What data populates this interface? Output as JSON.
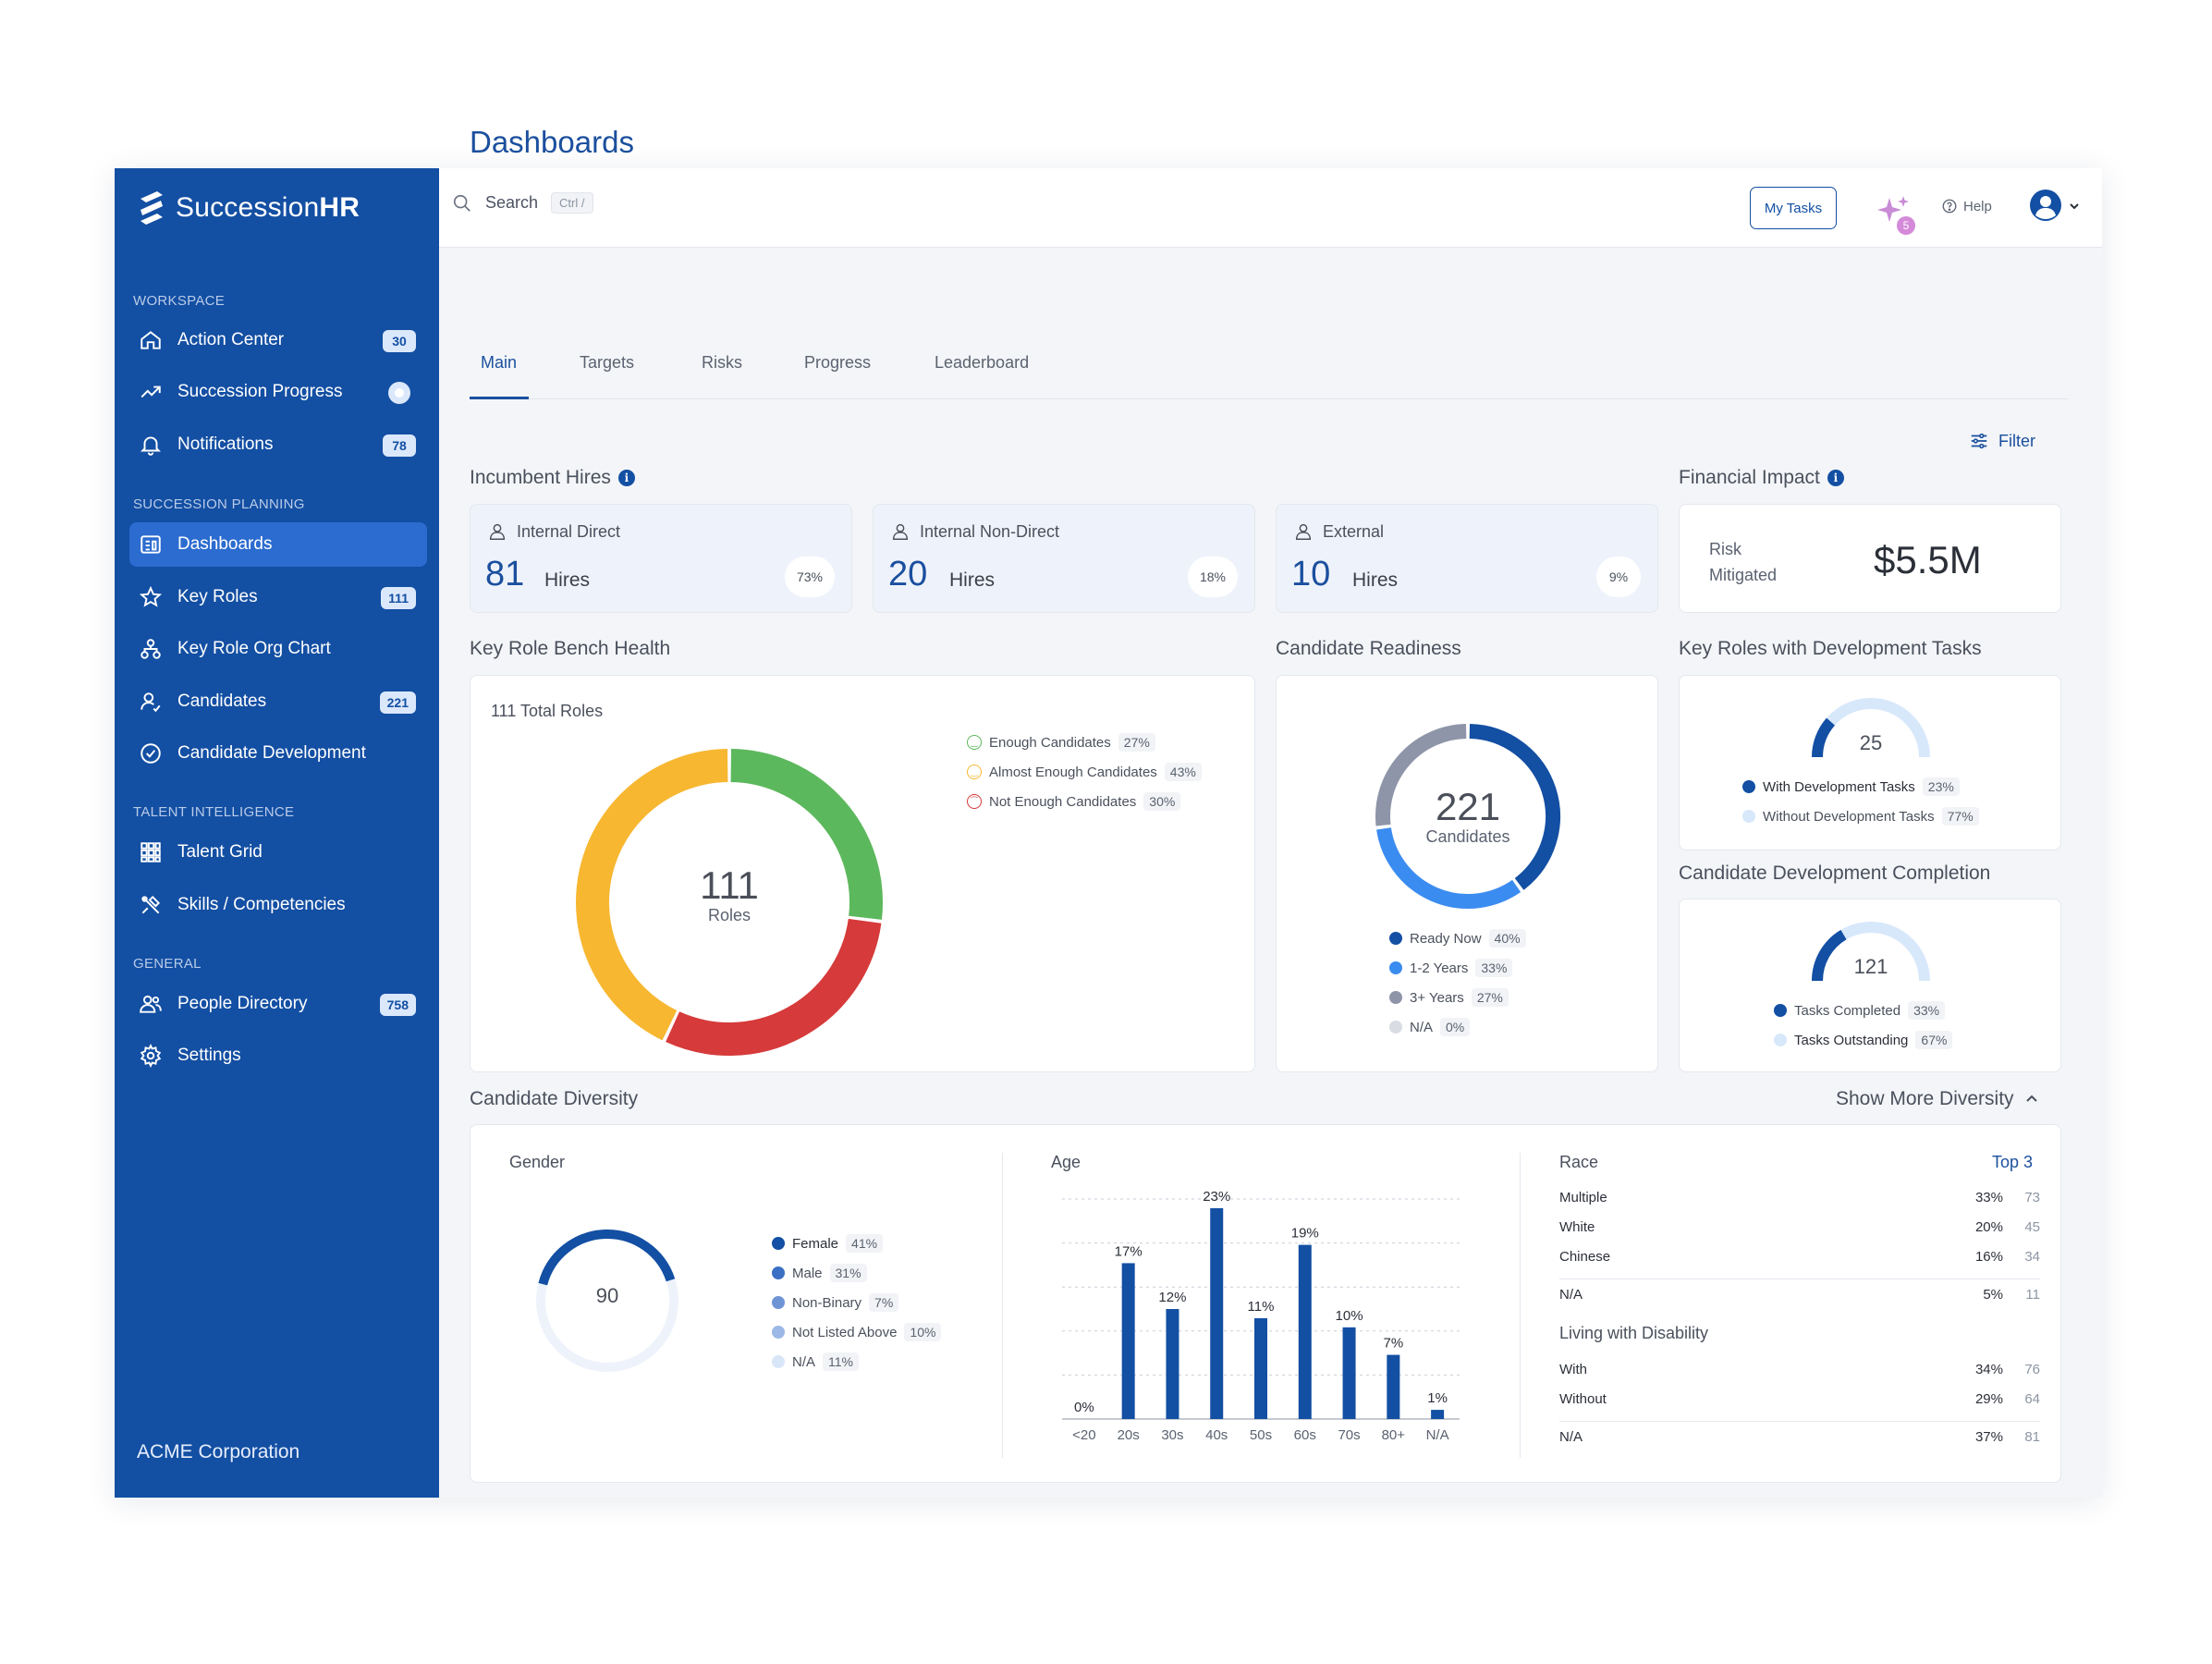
{
  "brand": {
    "name_plain": "Succession",
    "name_bold": "HR"
  },
  "sidebar": {
    "sections": [
      {
        "label": "WORKSPACE"
      },
      {
        "label": "SUCCESSION PLANNING"
      },
      {
        "label": "TALENT INTELLIGENCE"
      },
      {
        "label": "GENERAL"
      }
    ],
    "items": [
      {
        "label": "Action Center",
        "icon": "home-icon",
        "badge": "30"
      },
      {
        "label": "Succession Progress",
        "icon": "trend-icon",
        "badge": ""
      },
      {
        "label": "Notifications",
        "icon": "bell-icon",
        "badge": "78"
      },
      {
        "label": "Dashboards",
        "icon": "dashboard-icon",
        "badge": "",
        "active": true
      },
      {
        "label": "Key Roles",
        "icon": "star-icon",
        "badge": "111"
      },
      {
        "label": "Key Role Org Chart",
        "icon": "org-chart-icon",
        "badge": ""
      },
      {
        "label": "Candidates",
        "icon": "candidates-icon",
        "badge": "221"
      },
      {
        "label": "Candidate Development",
        "icon": "check-circle-icon",
        "badge": ""
      },
      {
        "label": "Talent Grid",
        "icon": "grid-icon",
        "badge": ""
      },
      {
        "label": "Skills / Competencies",
        "icon": "tools-icon",
        "badge": ""
      },
      {
        "label": "People Directory",
        "icon": "people-icon",
        "badge": "758"
      },
      {
        "label": "Settings",
        "icon": "gear-icon",
        "badge": ""
      }
    ],
    "org": "ACME Corporation"
  },
  "topbar": {
    "search_label": "Search",
    "search_shortcut": "Ctrl /",
    "my_tasks": "My Tasks",
    "ai_badge": "5",
    "help": "Help"
  },
  "page": {
    "title": "Dashboards",
    "tabs": [
      "Main",
      "Targets",
      "Risks",
      "Progress",
      "Leaderboard"
    ],
    "filter": "Filter"
  },
  "incumbent_hires": {
    "title": "Incumbent Hires",
    "cards": [
      {
        "label": "Internal Direct",
        "value": "81",
        "unit": "Hires",
        "pct": "73%"
      },
      {
        "label": "Internal Non-Direct",
        "value": "20",
        "unit": "Hires",
        "pct": "18%"
      },
      {
        "label": "External",
        "value": "10",
        "unit": "Hires",
        "pct": "9%"
      }
    ]
  },
  "financial_impact": {
    "title": "Financial Impact",
    "label_line1": "Risk",
    "label_line2": "Mitigated",
    "value": "$5.5M"
  },
  "bench_health": {
    "title": "Key Role Bench Health",
    "total_label": "111 Total Roles",
    "center_value": "111",
    "center_sub": "Roles",
    "colors": {
      "enough": "#5cb85c",
      "almost": "#f7b731",
      "not": "#d63a3a"
    },
    "legend": [
      {
        "label": "Enough Candidates",
        "pct": "27%",
        "value": 27
      },
      {
        "label": "Almost Enough Candidates",
        "pct": "43%",
        "value": 43
      },
      {
        "label": "Not Enough Candidates",
        "pct": "30%",
        "value": 30
      }
    ]
  },
  "readiness": {
    "title": "Candidate Readiness",
    "center_value": "221",
    "center_sub": "Candidates",
    "legend": [
      {
        "label": "Ready Now",
        "pct": "40%",
        "value": 40,
        "color": "#134fa3"
      },
      {
        "label": "1-2 Years",
        "pct": "33%",
        "value": 33,
        "color": "#3b8cf0"
      },
      {
        "label": "3+ Years",
        "pct": "27%",
        "value": 27,
        "color": "#8e95a8"
      },
      {
        "label": "N/A",
        "pct": "0%",
        "value": 0,
        "color": "#d9dce3"
      }
    ]
  },
  "dev_tasks": {
    "title": "Key Roles with Development Tasks",
    "value": "25",
    "fraction": 0.23,
    "legend": [
      {
        "label": "With Development Tasks",
        "pct": "23%",
        "color": "#134fa3"
      },
      {
        "label": "Without Development Tasks",
        "pct": "77%",
        "color": "#d8e8fb"
      }
    ]
  },
  "dev_completion": {
    "title": "Candidate Development Completion",
    "value": "121",
    "fraction": 0.33,
    "legend": [
      {
        "label": "Tasks Completed",
        "pct": "33%",
        "color": "#134fa3"
      },
      {
        "label": "Tasks Outstanding",
        "pct": "67%",
        "color": "#d8e8fb"
      }
    ]
  },
  "diversity": {
    "title": "Candidate Diversity",
    "show_more": "Show More Diversity",
    "gender": {
      "title": "Gender",
      "value": "90",
      "fraction": 0.41,
      "legend": [
        {
          "label": "Female",
          "pct": "41%",
          "color": "#134fa3"
        },
        {
          "label": "Male",
          "pct": "31%",
          "color": "#3a6fc4"
        },
        {
          "label": "Non-Binary",
          "pct": "7%",
          "color": "#6e94d6"
        },
        {
          "label": "Not Listed Above",
          "pct": "10%",
          "color": "#9cb8e6"
        },
        {
          "label": "N/A",
          "pct": "11%",
          "color": "#d8e6f8"
        }
      ]
    },
    "age": {
      "title": "Age"
    },
    "race": {
      "title": "Race",
      "top": "Top 3",
      "rows": [
        {
          "label": "Multiple",
          "pct": "33%",
          "count": "73"
        },
        {
          "label": "White",
          "pct": "20%",
          "count": "45"
        },
        {
          "label": "Chinese",
          "pct": "16%",
          "count": "34"
        },
        {
          "label": "N/A",
          "pct": "5%",
          "count": "11"
        }
      ]
    },
    "disability": {
      "title": "Living with Disability",
      "rows": [
        {
          "label": "With",
          "pct": "34%",
          "count": "76"
        },
        {
          "label": "Without",
          "pct": "29%",
          "count": "64"
        },
        {
          "label": "N/A",
          "pct": "37%",
          "count": "81"
        }
      ]
    }
  },
  "chart_data": {
    "type": "bar",
    "title": "Age",
    "categories": [
      "<20",
      "20s",
      "30s",
      "40s",
      "50s",
      "60s",
      "70s",
      "80+",
      "N/A"
    ],
    "values": [
      0,
      17,
      12,
      23,
      11,
      19,
      10,
      7,
      1
    ],
    "labels": [
      "0%",
      "17%",
      "12%",
      "23%",
      "11%",
      "19%",
      "10%",
      "7%",
      "1%"
    ],
    "ylim": [
      0,
      24
    ],
    "grid": true,
    "color": "#134fa3"
  }
}
